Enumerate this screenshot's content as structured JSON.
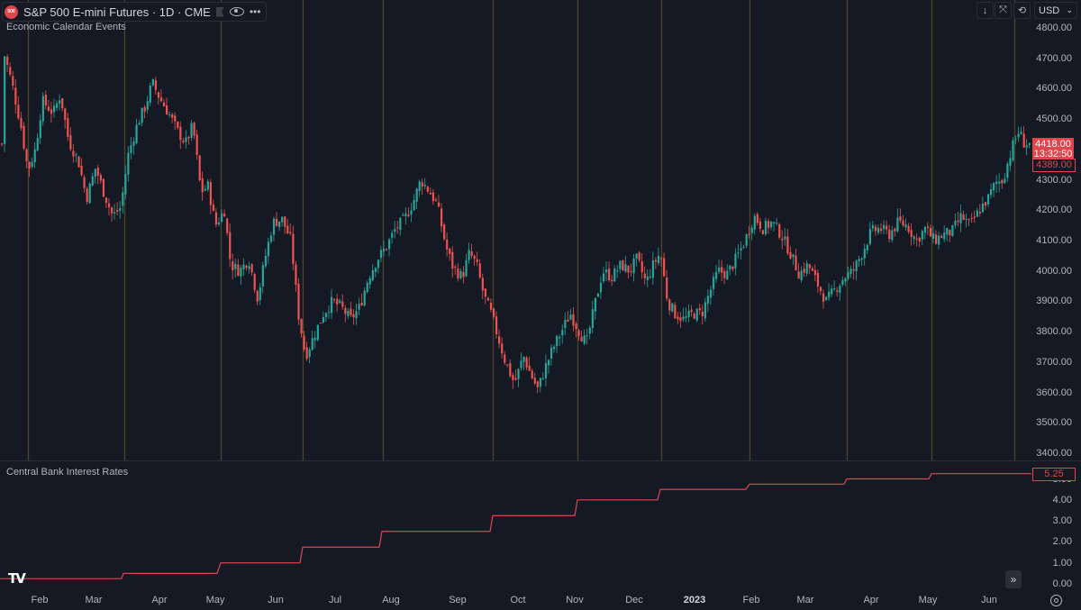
{
  "header": {
    "symbol_logo": "500",
    "title": "S&P 500 E-mini Futures · 1D · CME",
    "icons": [
      "flag-icon",
      "eye-icon",
      "more-icon"
    ]
  },
  "toolbar": {
    "scroll_down_icon": "↓",
    "auto_scale_icon": "⤧",
    "reset_icon": "⟲",
    "currency": "USD",
    "currency_chevron": "⌄"
  },
  "panes": {
    "main_title": "Economic Calendar Events",
    "sub_title": "Central Bank Interest Rates"
  },
  "price_tags": {
    "last_price": "4418.00",
    "countdown": "13:32:50",
    "prev_close": "4389.00",
    "rate_last": "5.25"
  },
  "colors": {
    "up": "#26a69a",
    "down": "#ef5350",
    "event_line": "#4d4526",
    "rate_line": "#e0454c",
    "background": "#151924"
  },
  "navigation": {
    "goto_realtime_icon": "»",
    "settings_icon": "settings-icon",
    "logo": "TV"
  },
  "chart_data": [
    {
      "type": "candlestick",
      "title": "S&P 500 E-mini Futures · 1D · CME",
      "subtitle": "Economic Calendar Events",
      "ylabel": "USD",
      "ylim": [
        3400,
        4800
      ],
      "yticks": [
        "4800.00",
        "4700.00",
        "4600.00",
        "4500.00",
        "4400.00",
        "4300.00",
        "4200.00",
        "4100.00",
        "4000.00",
        "3900.00",
        "3800.00",
        "3700.00",
        "3600.00",
        "3500.00",
        "3400.00"
      ],
      "xticks": [
        {
          "label": "Feb",
          "x": 44
        },
        {
          "label": "Mar",
          "x": 104
        },
        {
          "label": "Apr",
          "x": 177
        },
        {
          "label": "May",
          "x": 239
        },
        {
          "label": "Jun",
          "x": 306
        },
        {
          "label": "Jul",
          "x": 372
        },
        {
          "label": "Aug",
          "x": 434
        },
        {
          "label": "Sep",
          "x": 508
        },
        {
          "label": "Oct",
          "x": 575
        },
        {
          "label": "Nov",
          "x": 638
        },
        {
          "label": "Dec",
          "x": 704
        },
        {
          "label": "2023",
          "x": 771,
          "year": true
        },
        {
          "label": "Feb",
          "x": 834
        },
        {
          "label": "Mar",
          "x": 894
        },
        {
          "label": "Apr",
          "x": 967
        },
        {
          "label": "May",
          "x": 1030
        },
        {
          "label": "Jun",
          "x": 1098
        }
      ],
      "event_lines_x": [
        31,
        138,
        245,
        336,
        425,
        547,
        641,
        734,
        832,
        940,
        1034,
        1126
      ],
      "price_path_keypoints": [
        {
          "x": 3,
          "close": 4720
        },
        {
          "x": 12,
          "close": 4620
        },
        {
          "x": 22,
          "close": 4480
        },
        {
          "x": 30,
          "close": 4330
        },
        {
          "x": 38,
          "close": 4400
        },
        {
          "x": 46,
          "close": 4560
        },
        {
          "x": 58,
          "close": 4520
        },
        {
          "x": 66,
          "close": 4580
        },
        {
          "x": 75,
          "close": 4430
        },
        {
          "x": 86,
          "close": 4360
        },
        {
          "x": 95,
          "close": 4240
        },
        {
          "x": 105,
          "close": 4340
        },
        {
          "x": 114,
          "close": 4260
        },
        {
          "x": 124,
          "close": 4180
        },
        {
          "x": 133,
          "close": 4210
        },
        {
          "x": 141,
          "close": 4380
        },
        {
          "x": 152,
          "close": 4490
        },
        {
          "x": 160,
          "close": 4540
        },
        {
          "x": 168,
          "close": 4620
        },
        {
          "x": 176,
          "close": 4570
        },
        {
          "x": 186,
          "close": 4520
        },
        {
          "x": 196,
          "close": 4460
        },
        {
          "x": 205,
          "close": 4420
        },
        {
          "x": 213,
          "close": 4480
        },
        {
          "x": 222,
          "close": 4260
        },
        {
          "x": 230,
          "close": 4280
        },
        {
          "x": 238,
          "close": 4150
        },
        {
          "x": 248,
          "close": 4200
        },
        {
          "x": 255,
          "close": 4020
        },
        {
          "x": 265,
          "close": 4000
        },
        {
          "x": 275,
          "close": 4040
        },
        {
          "x": 285,
          "close": 3910
        },
        {
          "x": 293,
          "close": 4040
        },
        {
          "x": 302,
          "close": 4160
        },
        {
          "x": 312,
          "close": 4170
        },
        {
          "x": 322,
          "close": 4100
        },
        {
          "x": 330,
          "close": 3860
        },
        {
          "x": 338,
          "close": 3720
        },
        {
          "x": 348,
          "close": 3790
        },
        {
          "x": 358,
          "close": 3860
        },
        {
          "x": 368,
          "close": 3900
        },
        {
          "x": 378,
          "close": 3880
        },
        {
          "x": 388,
          "close": 3840
        },
        {
          "x": 398,
          "close": 3880
        },
        {
          "x": 408,
          "close": 3980
        },
        {
          "x": 418,
          "close": 4040
        },
        {
          "x": 428,
          "close": 4080
        },
        {
          "x": 438,
          "close": 4140
        },
        {
          "x": 448,
          "close": 4170
        },
        {
          "x": 458,
          "close": 4230
        },
        {
          "x": 466,
          "close": 4300
        },
        {
          "x": 476,
          "close": 4260
        },
        {
          "x": 484,
          "close": 4220
        },
        {
          "x": 494,
          "close": 4080
        },
        {
          "x": 502,
          "close": 4010
        },
        {
          "x": 512,
          "close": 3980
        },
        {
          "x": 520,
          "close": 4060
        },
        {
          "x": 528,
          "close": 4020
        },
        {
          "x": 536,
          "close": 3920
        },
        {
          "x": 544,
          "close": 3860
        },
        {
          "x": 552,
          "close": 3780
        },
        {
          "x": 560,
          "close": 3700
        },
        {
          "x": 570,
          "close": 3630
        },
        {
          "x": 580,
          "close": 3720
        },
        {
          "x": 588,
          "close": 3660
        },
        {
          "x": 596,
          "close": 3610
        },
        {
          "x": 604,
          "close": 3680
        },
        {
          "x": 612,
          "close": 3740
        },
        {
          "x": 622,
          "close": 3800
        },
        {
          "x": 632,
          "close": 3860
        },
        {
          "x": 642,
          "close": 3800
        },
        {
          "x": 650,
          "close": 3760
        },
        {
          "x": 660,
          "close": 3900
        },
        {
          "x": 668,
          "close": 4000
        },
        {
          "x": 678,
          "close": 3980
        },
        {
          "x": 688,
          "close": 4020
        },
        {
          "x": 698,
          "close": 4000
        },
        {
          "x": 706,
          "close": 4040
        },
        {
          "x": 716,
          "close": 3960
        },
        {
          "x": 724,
          "close": 4020
        },
        {
          "x": 732,
          "close": 4060
        },
        {
          "x": 740,
          "close": 3900
        },
        {
          "x": 748,
          "close": 3860
        },
        {
          "x": 758,
          "close": 3840
        },
        {
          "x": 768,
          "close": 3860
        },
        {
          "x": 778,
          "close": 3860
        },
        {
          "x": 788,
          "close": 3940
        },
        {
          "x": 796,
          "close": 4000
        },
        {
          "x": 806,
          "close": 3990
        },
        {
          "x": 816,
          "close": 4040
        },
        {
          "x": 826,
          "close": 4100
        },
        {
          "x": 836,
          "close": 4180
        },
        {
          "x": 846,
          "close": 4140
        },
        {
          "x": 856,
          "close": 4160
        },
        {
          "x": 866,
          "close": 4120
        },
        {
          "x": 876,
          "close": 4060
        },
        {
          "x": 886,
          "close": 3990
        },
        {
          "x": 896,
          "close": 4020
        },
        {
          "x": 906,
          "close": 3960
        },
        {
          "x": 916,
          "close": 3900
        },
        {
          "x": 926,
          "close": 3940
        },
        {
          "x": 936,
          "close": 3980
        },
        {
          "x": 946,
          "close": 4000
        },
        {
          "x": 956,
          "close": 4060
        },
        {
          "x": 966,
          "close": 4130
        },
        {
          "x": 976,
          "close": 4140
        },
        {
          "x": 986,
          "close": 4120
        },
        {
          "x": 996,
          "close": 4160
        },
        {
          "x": 1006,
          "close": 4150
        },
        {
          "x": 1016,
          "close": 4100
        },
        {
          "x": 1026,
          "close": 4140
        },
        {
          "x": 1036,
          "close": 4100
        },
        {
          "x": 1046,
          "close": 4120
        },
        {
          "x": 1056,
          "close": 4130
        },
        {
          "x": 1066,
          "close": 4180
        },
        {
          "x": 1076,
          "close": 4150
        },
        {
          "x": 1086,
          "close": 4200
        },
        {
          "x": 1096,
          "close": 4240
        },
        {
          "x": 1104,
          "close": 4290
        },
        {
          "x": 1112,
          "close": 4300
        },
        {
          "x": 1118,
          "close": 4360
        },
        {
          "x": 1124,
          "close": 4420
        },
        {
          "x": 1130,
          "close": 4460
        },
        {
          "x": 1136,
          "close": 4420
        },
        {
          "x": 1142,
          "close": 4418
        }
      ],
      "last_price": 4418.0,
      "previous_close": 4389.0,
      "countdown": "13:32:50"
    },
    {
      "type": "line",
      "title": "Central Bank Interest Rates",
      "style": "step",
      "ylim": [
        0,
        5.5
      ],
      "yticks": [
        "5.00",
        "4.00",
        "3.00",
        "2.00",
        "1.00",
        "0.00"
      ],
      "steps": [
        {
          "x_start": 0,
          "x_end": 135,
          "value": 0.25
        },
        {
          "x_start": 137,
          "x_end": 241,
          "value": 0.5
        },
        {
          "x_start": 245,
          "x_end": 333,
          "value": 1.0
        },
        {
          "x_start": 336,
          "x_end": 421,
          "value": 1.75
        },
        {
          "x_start": 424,
          "x_end": 544,
          "value": 2.5
        },
        {
          "x_start": 547,
          "x_end": 638,
          "value": 3.25
        },
        {
          "x_start": 641,
          "x_end": 730,
          "value": 4.0
        },
        {
          "x_start": 733,
          "x_end": 828,
          "value": 4.5
        },
        {
          "x_start": 832,
          "x_end": 937,
          "value": 4.75
        },
        {
          "x_start": 940,
          "x_end": 1031,
          "value": 5.0
        },
        {
          "x_start": 1034,
          "x_end": 1145,
          "value": 5.25
        }
      ],
      "last_value": 5.25
    }
  ]
}
